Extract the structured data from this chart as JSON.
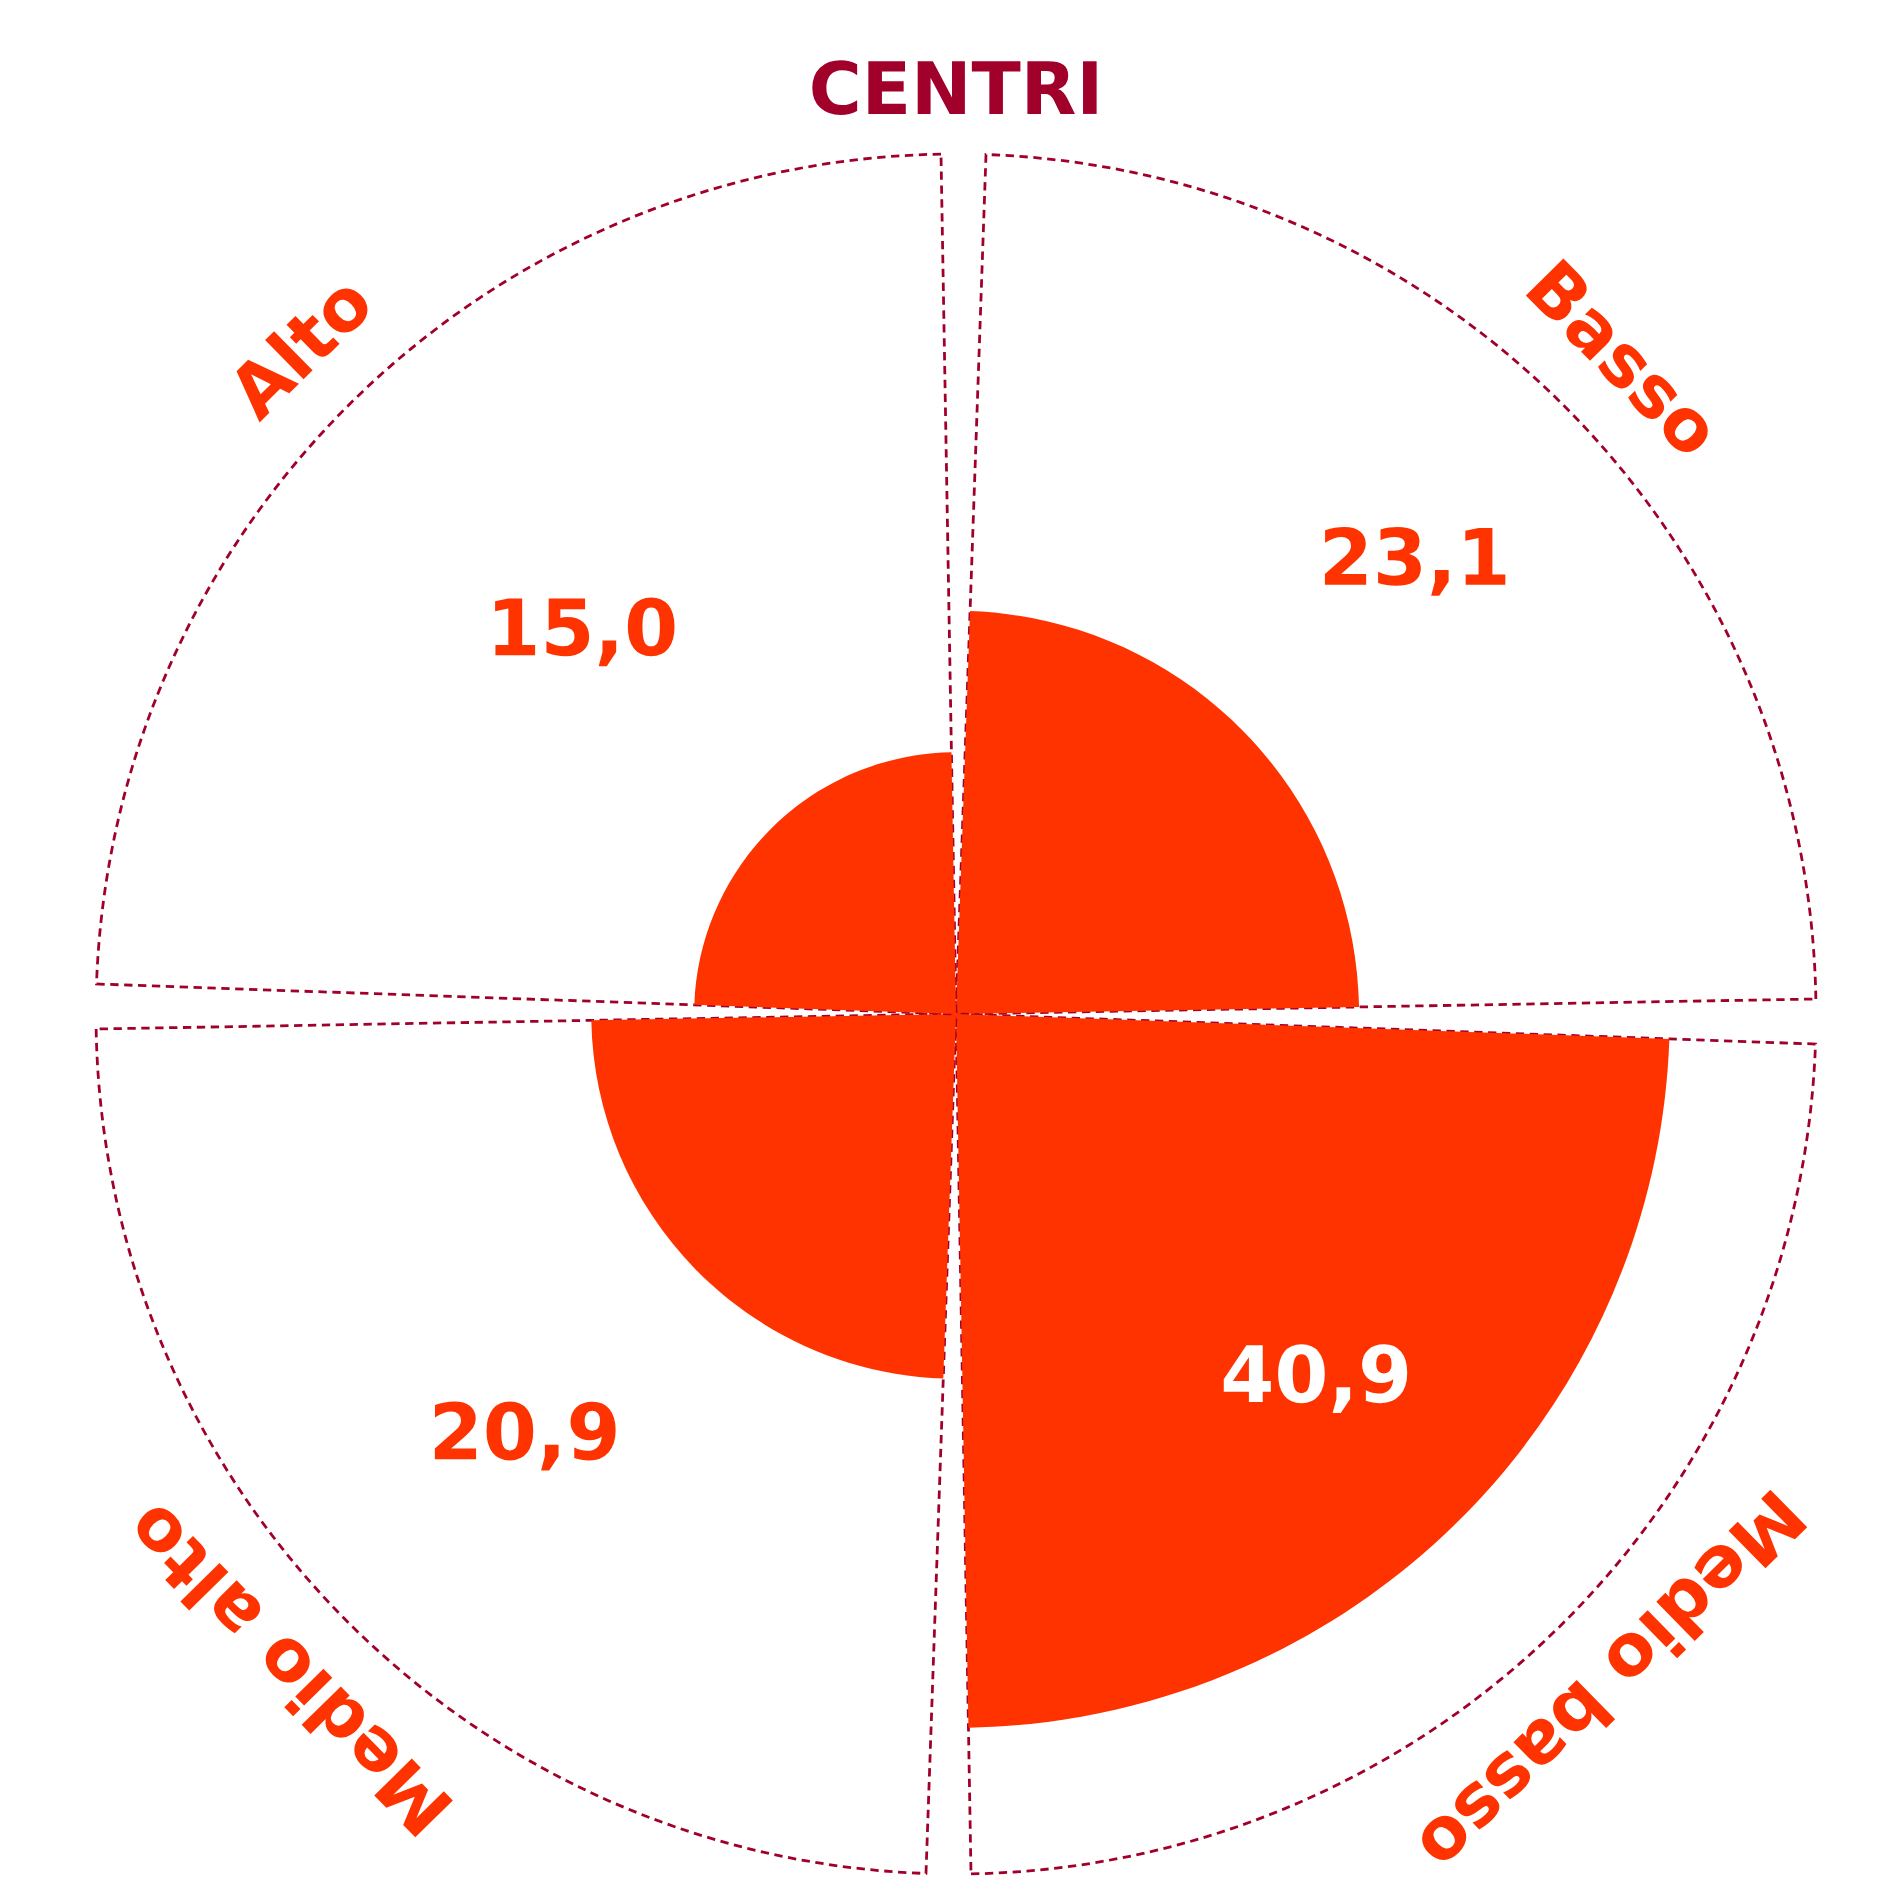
{
  "chart_data": {
    "type": "other",
    "title": "CENTRI",
    "categories": [
      "Basso",
      "Medio basso",
      "Medio alto",
      "Alto"
    ],
    "values": [
      23.1,
      40.9,
      20.9,
      15.0
    ],
    "value_labels": [
      "23,1",
      "40,9",
      "20,9",
      "15,0"
    ],
    "color": "#ff3300"
  }
}
